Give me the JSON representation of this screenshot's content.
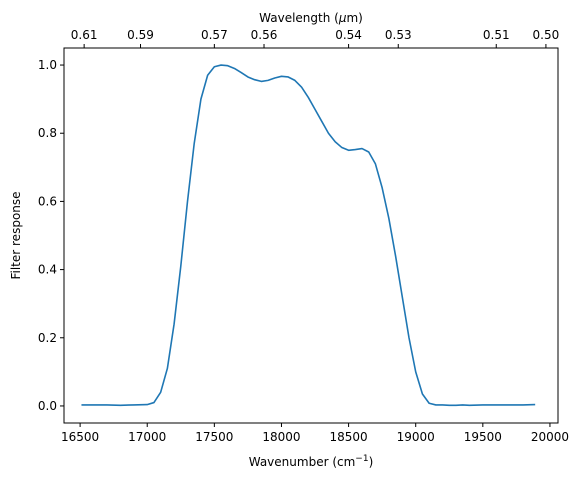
{
  "chart_data": {
    "type": "line",
    "xlabel": "Wavenumber (cm",
    "xlabel_exponent": "−1",
    "xlabel_close": ")",
    "ylabel": "Filter response",
    "top_xlabel_prefix": "Wavelength (",
    "top_xlabel_mu": "μ",
    "top_xlabel_suffix": "m)",
    "xlim": [
      16380,
      20060
    ],
    "ylim": [
      -0.05,
      1.05
    ],
    "x_ticks": [
      16500,
      17000,
      17500,
      18000,
      18500,
      19000,
      19500,
      20000
    ],
    "x_tick_labels": [
      "16500",
      "17000",
      "17500",
      "18000",
      "18500",
      "19000",
      "19500",
      "20000"
    ],
    "y_ticks": [
      0.0,
      0.2,
      0.4,
      0.6,
      0.8,
      1.0
    ],
    "y_tick_labels": [
      "0.0",
      "0.2",
      "0.4",
      "0.6",
      "0.8",
      "1.0"
    ],
    "top_x_ticks": [
      16530,
      16950,
      17500,
      17870,
      18500,
      18870,
      19600,
      19970
    ],
    "top_x_tick_labels": [
      "0.61",
      "0.59",
      "0.57",
      "0.56",
      "0.54",
      "0.53",
      "0.51",
      "0.50"
    ],
    "grid": false,
    "line_color": "#1f77b4",
    "series": [
      {
        "x": [
          16510,
          16600,
          16700,
          16800,
          16900,
          17000,
          17050,
          17100,
          17150,
          17200,
          17250,
          17300,
          17350,
          17400,
          17450,
          17500,
          17550,
          17600,
          17650,
          17700,
          17750,
          17800,
          17850,
          17900,
          17950,
          18000,
          18050,
          18100,
          18150,
          18200,
          18250,
          18300,
          18350,
          18400,
          18450,
          18500,
          18550,
          18600,
          18650,
          18700,
          18750,
          18800,
          18850,
          18900,
          18950,
          19000,
          19050,
          19100,
          19150,
          19200,
          19250,
          19300,
          19350,
          19400,
          19500,
          19600,
          19700,
          19800,
          19890
        ],
        "y": [
          0.003,
          0.003,
          0.003,
          0.002,
          0.003,
          0.004,
          0.01,
          0.04,
          0.11,
          0.24,
          0.41,
          0.6,
          0.77,
          0.9,
          0.97,
          0.995,
          1.0,
          0.998,
          0.99,
          0.978,
          0.965,
          0.957,
          0.952,
          0.955,
          0.962,
          0.967,
          0.965,
          0.955,
          0.935,
          0.905,
          0.87,
          0.835,
          0.8,
          0.775,
          0.758,
          0.75,
          0.752,
          0.755,
          0.745,
          0.71,
          0.64,
          0.55,
          0.44,
          0.32,
          0.2,
          0.1,
          0.035,
          0.008,
          0.003,
          0.003,
          0.002,
          0.002,
          0.003,
          0.002,
          0.003,
          0.003,
          0.003,
          0.003,
          0.004
        ]
      }
    ]
  }
}
